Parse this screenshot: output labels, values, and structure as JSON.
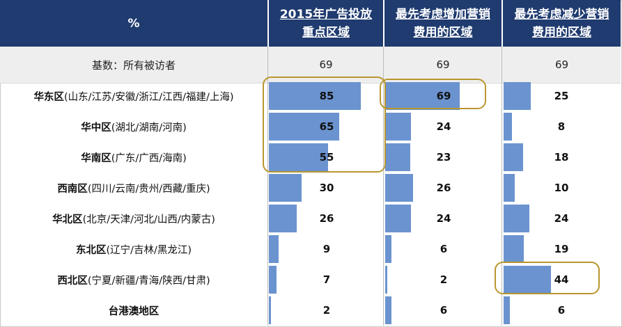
{
  "header": {
    "pct_label": "%",
    "columns": [
      {
        "line1": "2015年广告投放",
        "line2": "重点区域"
      },
      {
        "line1": "最先考虑增加营销",
        "line2": "费用的区域"
      },
      {
        "line1": "最先考虑减少营销",
        "line2": "费用的区域"
      }
    ]
  },
  "base": {
    "label": "基数：所有被访者",
    "values": [
      "69",
      "69",
      "69"
    ]
  },
  "rows": [
    {
      "name": "华东区",
      "detail": "(山东/江苏/安徽/浙江/江西/福建/上海)"
    },
    {
      "name": "华中区",
      "detail": "(湖北/湖南/河南)"
    },
    {
      "name": "华南区",
      "detail": "(广东/广西/海南)"
    },
    {
      "name": "西南区",
      "detail": "(四川/云南/贵州/西藏/重庆)"
    },
    {
      "name": "华北区",
      "detail": "(北京/天津/河北/山西/内蒙古)"
    },
    {
      "name": "东北区",
      "detail": "(辽宁/吉林/黑龙江)"
    },
    {
      "name": "西北区",
      "detail": "(宁夏/新疆/青海/陕西/甘肃)"
    },
    {
      "name": "台港澳地区",
      "detail": ""
    }
  ],
  "chart_data": {
    "type": "bar",
    "orientation": "horizontal",
    "categories": [
      "华东区",
      "华中区",
      "华南区",
      "西南区",
      "华北区",
      "东北区",
      "西北区",
      "台港澳地区"
    ],
    "series": [
      {
        "name": "2015年广告投放重点区域",
        "values": [
          85,
          65,
          55,
          30,
          26,
          9,
          7,
          2
        ]
      },
      {
        "name": "最先考虑增加营销费用的区域",
        "values": [
          69,
          24,
          23,
          26,
          24,
          6,
          2,
          6
        ]
      },
      {
        "name": "最先考虑减少营销费用的区域",
        "values": [
          25,
          8,
          18,
          10,
          24,
          19,
          44,
          6
        ]
      }
    ],
    "unit": "%",
    "bar_color": "#6b93cf",
    "highlights": [
      {
        "series": 0,
        "categories": [
          0,
          1,
          2
        ]
      },
      {
        "series": 1,
        "categories": [
          0
        ]
      },
      {
        "series": 2,
        "categories": [
          6
        ]
      }
    ],
    "highlight_color": "#b8962e",
    "header_color": "#1f3b6f"
  }
}
